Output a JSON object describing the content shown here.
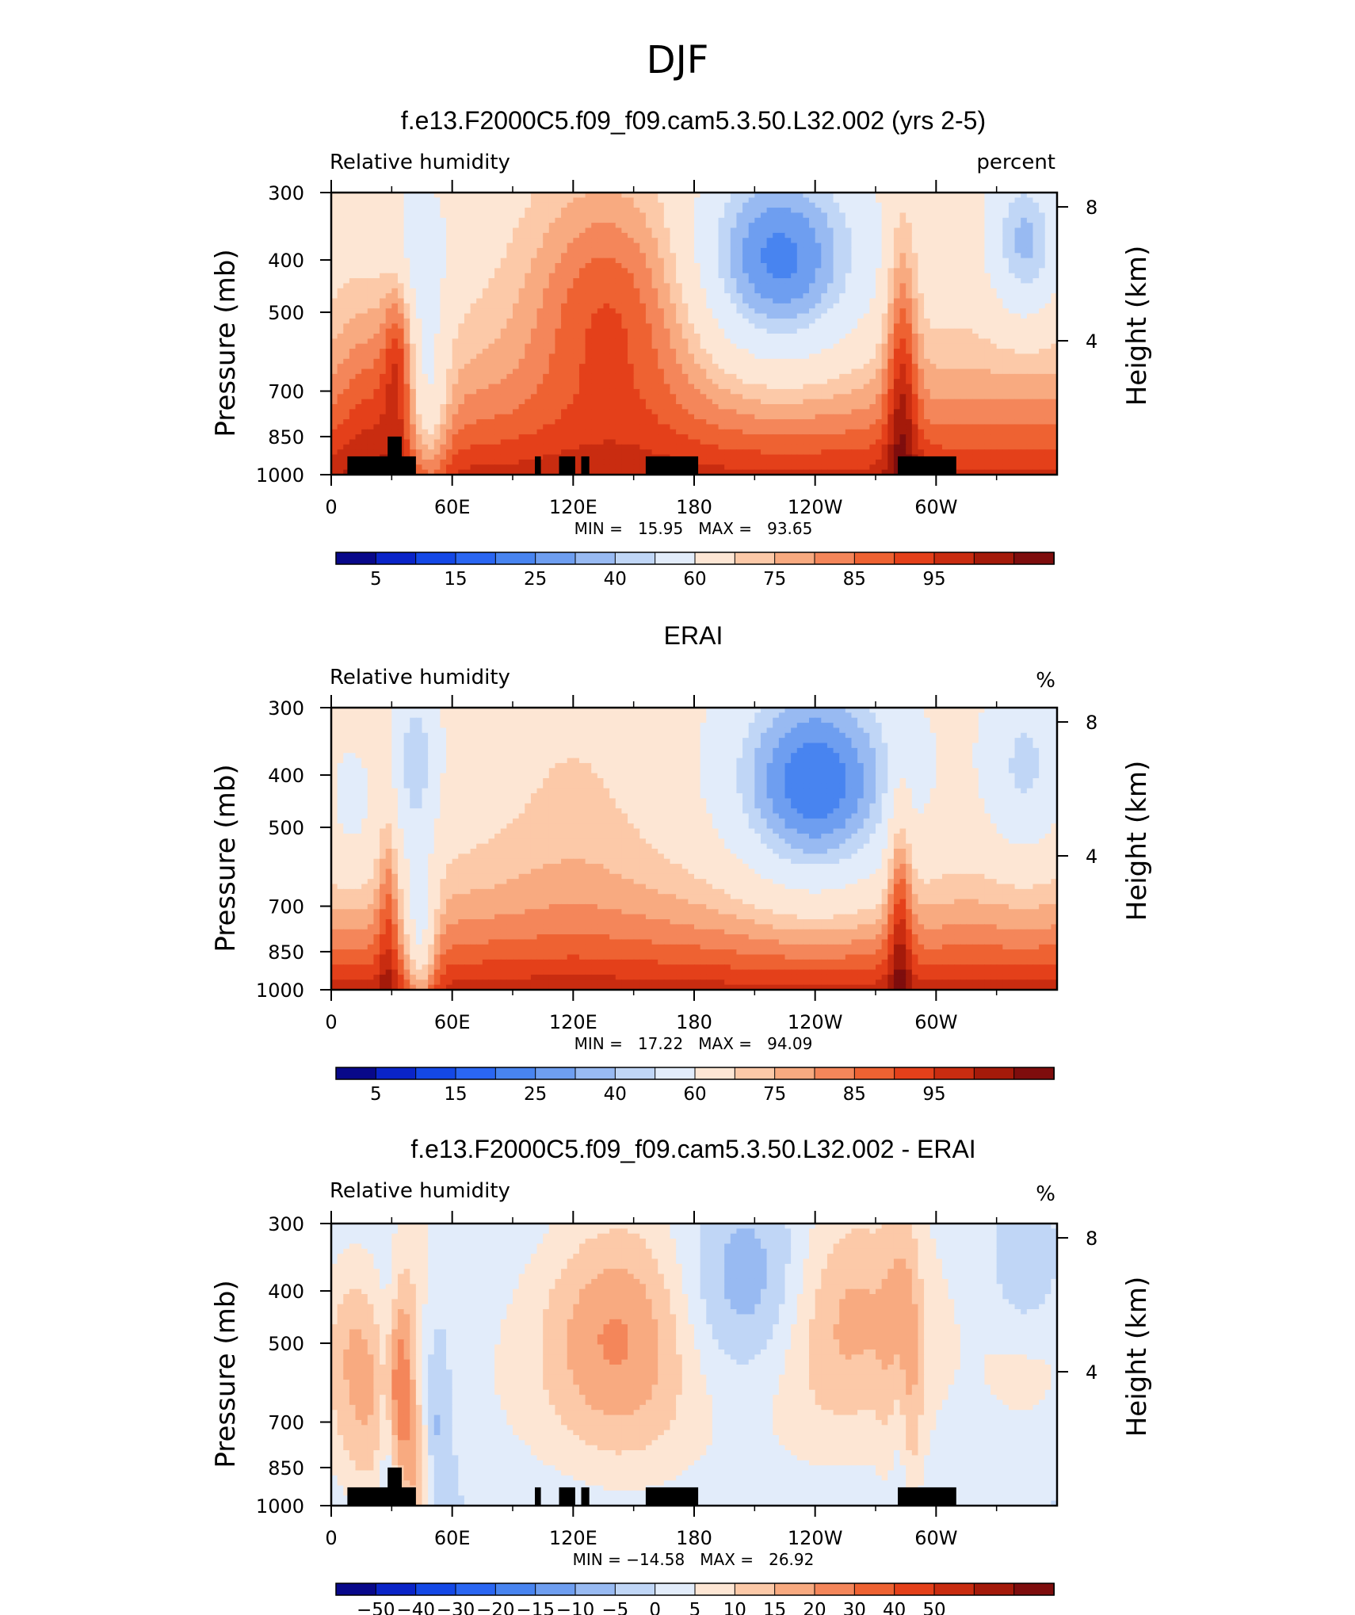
{
  "figure_title": "DJF",
  "colors": {
    "ocean_blue_dark": "#0a0a8c",
    "land_mask": "#000000",
    "frame": "#000000"
  },
  "colorbar_abs": {
    "colors": [
      "#08088a",
      "#0a24c8",
      "#1448e6",
      "#2a66f2",
      "#4884f0",
      "#6e9ef0",
      "#98baf2",
      "#c0d6f6",
      "#e2ecfa",
      "#fde6d4",
      "#fcc9a8",
      "#f8aa80",
      "#f4865a",
      "#ee6232",
      "#e4401a",
      "#c92c10",
      "#a41a0a",
      "#7e0d0d"
    ],
    "labels": [
      "5",
      "15",
      "25",
      "40",
      "60",
      "75",
      "85",
      "95"
    ]
  },
  "colorbar_diff": {
    "colors": [
      "#08088a",
      "#0a24c8",
      "#1448e6",
      "#2a66f2",
      "#4884f0",
      "#6e9ef0",
      "#98baf2",
      "#c0d6f6",
      "#e2ecfa",
      "#fde6d4",
      "#fcc9a8",
      "#f8aa80",
      "#f4865a",
      "#ee6232",
      "#e4401a",
      "#c92c10",
      "#a41a0a",
      "#7e0d0d"
    ],
    "labels": [
      "−50",
      "−40",
      "−30",
      "−20",
      "−15",
      "−10",
      "−5",
      "0",
      "5",
      "10",
      "15",
      "20",
      "30",
      "40",
      "50"
    ]
  },
  "chart_data": [
    {
      "type": "heatmap",
      "title": "f.e13.F2000C5.f09_f09.cam5.3.50.L32.002 (yrs 2-5)",
      "subtitle_left": "Relative humidity",
      "subtitle_right": "percent",
      "ylabel": "Pressure (mb)",
      "ylabel_right": "Height (km)",
      "x_ticks": [
        "0",
        "60E",
        "120E",
        "180",
        "120W",
        "60W"
      ],
      "y_ticks": [
        "300",
        "400",
        "500",
        "700",
        "850",
        "1000"
      ],
      "y_ticks_right": [
        "8",
        "4"
      ],
      "x_range": [
        0,
        360
      ],
      "y_range": [
        1000,
        300
      ],
      "stats": "MIN =   15.95   MAX =   93.65",
      "min": 15.95,
      "max": 93.65,
      "land_mask": true
    },
    {
      "type": "heatmap",
      "title": "ERAI",
      "subtitle_left": "Relative humidity",
      "subtitle_right": "%",
      "ylabel": "Pressure (mb)",
      "ylabel_right": "Height (km)",
      "x_ticks": [
        "0",
        "60E",
        "120E",
        "180",
        "120W",
        "60W"
      ],
      "y_ticks": [
        "300",
        "400",
        "500",
        "700",
        "850",
        "1000"
      ],
      "y_ticks_right": [
        "8",
        "4"
      ],
      "x_range": [
        0,
        360
      ],
      "y_range": [
        1000,
        300
      ],
      "stats": "MIN =   17.22   MAX =   94.09",
      "min": 17.22,
      "max": 94.09,
      "land_mask": false
    },
    {
      "type": "heatmap",
      "title": "f.e13.F2000C5.f09_f09.cam5.3.50.L32.002 - ERAI",
      "subtitle_left": "Relative humidity",
      "subtitle_right": "%",
      "ylabel": "Pressure (mb)",
      "ylabel_right": "Height (km)",
      "x_ticks": [
        "0",
        "60E",
        "120E",
        "180",
        "120W",
        "60W"
      ],
      "y_ticks": [
        "300",
        "400",
        "500",
        "700",
        "850",
        "1000"
      ],
      "y_ticks_right": [
        "8",
        "4"
      ],
      "x_range": [
        0,
        360
      ],
      "y_range": [
        1000,
        300
      ],
      "stats": "MIN = −14.58   MAX =   26.92",
      "min": -14.58,
      "max": 26.92,
      "land_mask": true
    }
  ]
}
